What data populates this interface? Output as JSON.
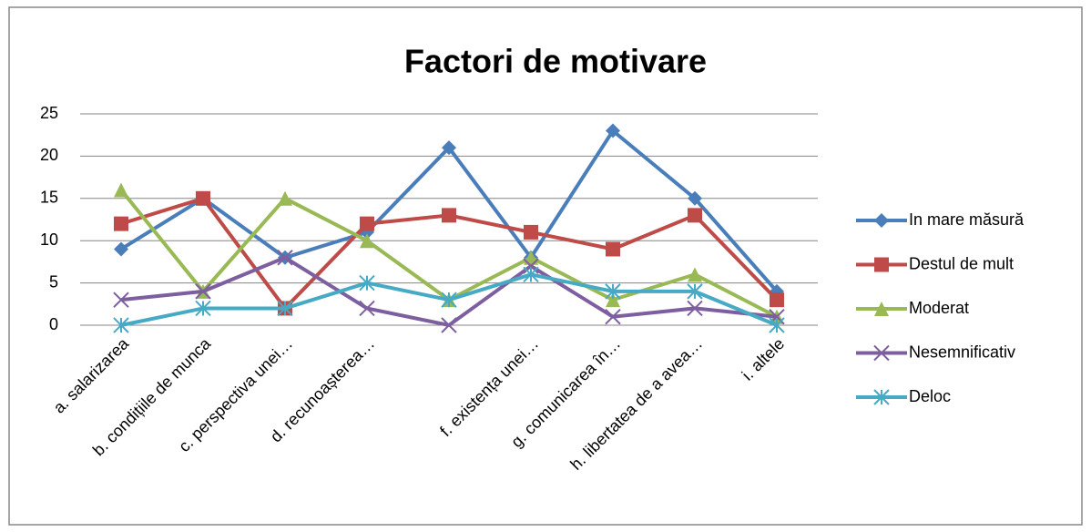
{
  "chart_data": {
    "type": "line",
    "title": "Factori de motivare",
    "categories": [
      "a. salarizarea",
      "b. condițiile de munca",
      "c. perspectiva unei…",
      "d. recunoașterea…",
      null,
      "f. existența unei…",
      "g. comunicarea în…",
      "h. libertatea de a avea…",
      "i. altele"
    ],
    "series": [
      {
        "name": "In mare măsură",
        "color": "#4a7ebb",
        "marker": "diamond",
        "values": [
          9,
          15,
          8,
          11,
          21,
          8,
          23,
          15,
          4
        ]
      },
      {
        "name": "Destul de mult",
        "color": "#be4b48",
        "marker": "square",
        "values": [
          12,
          15,
          2,
          12,
          13,
          11,
          9,
          13,
          3
        ]
      },
      {
        "name": "Moderat",
        "color": "#98b954",
        "marker": "triangle",
        "values": [
          16,
          4,
          15,
          10,
          3,
          8,
          3,
          6,
          1
        ]
      },
      {
        "name": "Nesemnificativ",
        "color": "#7d5fa0",
        "marker": "x",
        "values": [
          3,
          4,
          8,
          2,
          0,
          7,
          1,
          2,
          1
        ]
      },
      {
        "name": "Deloc",
        "color": "#46aac5",
        "marker": "star",
        "values": [
          0,
          2,
          2,
          5,
          3,
          6,
          4,
          4,
          0
        ]
      }
    ],
    "ylim": [
      0,
      25
    ],
    "yticks": [
      0,
      5,
      10,
      15,
      20,
      25
    ],
    "grid": true,
    "legend": "right"
  }
}
